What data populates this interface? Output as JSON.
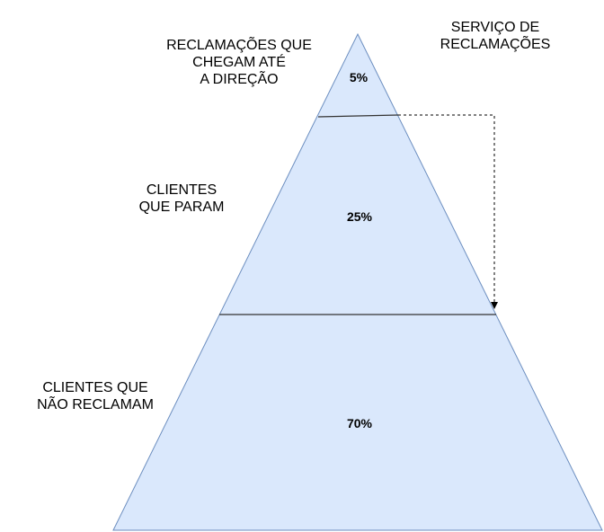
{
  "labels": {
    "top_line1": "RECLAMAÇÕES QUE",
    "top_line2": "CHEGAM ATÉ",
    "top_line3": "A DIREÇÃO",
    "middle_line1": "CLIENTES",
    "middle_line2": "QUE PARAM",
    "bottom_line1": "CLIENTES QUE",
    "bottom_line2": "NÃO RECLAMAM",
    "service_line1": "SERVIÇO DE",
    "service_line2": "RECLAMAÇÕES"
  },
  "tiers": {
    "top": "5%",
    "middle": "25%",
    "bottom": "70%"
  },
  "colors": {
    "fill": "#dae8fc",
    "stroke": "#6c8ebf",
    "divider": "#333333"
  }
}
